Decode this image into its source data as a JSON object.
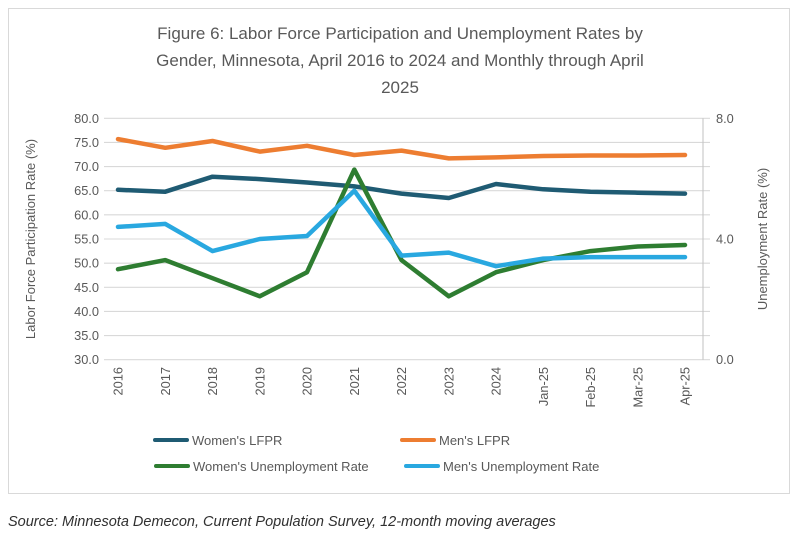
{
  "figure": {
    "title_lines": [
      "Figure 6: Labor Force Participation and Unemployment Rates by",
      "Gender, Minnesota, April 2016 to 2024 and Monthly through April",
      "2025"
    ],
    "source": "Source: Minnesota Demecon, Current Population Survey, 12-month moving averages"
  },
  "chart_data": {
    "type": "line",
    "title": "Figure 6: Labor Force Participation and Unemployment Rates by Gender, Minnesota, April 2016 to 2024 and Monthly through April 2025",
    "categories": [
      "2016",
      "2017",
      "2018",
      "2019",
      "2020",
      "2021",
      "2022",
      "2023",
      "2024",
      "Jan-25",
      "Feb-25",
      "Mar-25",
      "Apr-25"
    ],
    "grid": true,
    "legend_position": "bottom",
    "left_axis": {
      "label": "Labor Force Participation Rate (%)",
      "min": 30,
      "max": 80,
      "step": 5,
      "tick_labels": [
        "80.0",
        "75.0",
        "70.0",
        "65.0",
        "60.0",
        "55.0",
        "50.0",
        "45.0",
        "40.0",
        "35.0",
        "30.0"
      ]
    },
    "right_axis": {
      "label": "Unemployment Rate (%)",
      "min": 0,
      "max": 8,
      "step": 1,
      "tick_labels": [
        "8.0",
        "7.0",
        "6.0",
        "5.0",
        "4.0",
        "3.0",
        "2.0",
        "1.0",
        "0.0"
      ]
    },
    "series": [
      {
        "name": "Women's LFPR",
        "axis": "left",
        "color": "#1F5B73",
        "values": [
          65.2,
          64.8,
          67.9,
          67.4,
          66.7,
          65.9,
          64.4,
          63.5,
          66.4,
          65.3,
          64.8,
          64.6,
          64.4
        ]
      },
      {
        "name": "Men's LFPR",
        "axis": "left",
        "color": "#ED7D31",
        "values": [
          75.7,
          73.9,
          75.3,
          73.1,
          74.3,
          72.4,
          73.3,
          71.7,
          71.9,
          72.2,
          72.3,
          72.3,
          72.4
        ]
      },
      {
        "name": "Women's Unemployment Rate",
        "axis": "right",
        "color": "#2E7D31",
        "values": [
          3.0,
          3.3,
          2.7,
          2.1,
          2.9,
          6.3,
          3.3,
          2.1,
          2.9,
          3.3,
          3.6,
          3.75,
          3.8
        ]
      },
      {
        "name": "Men's Unemployment Rate",
        "axis": "right",
        "color": "#29A8E0",
        "values": [
          4.4,
          4.5,
          3.6,
          4.0,
          4.1,
          5.6,
          3.45,
          3.55,
          3.1,
          3.35,
          3.4,
          3.4,
          3.4
        ]
      }
    ]
  },
  "colors": {
    "text": "#595959",
    "grid": "#D9D9D9",
    "axis": "#C6C6C6",
    "frame_border": "#D9D9D9",
    "source_text": "#303030"
  }
}
